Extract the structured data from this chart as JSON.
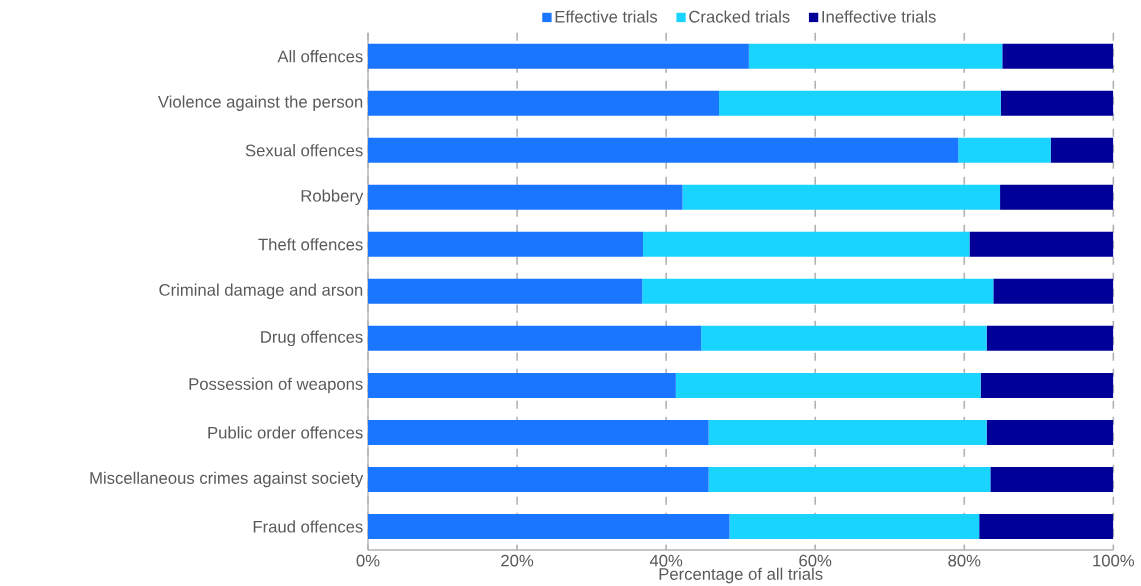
{
  "chart_data": {
    "type": "bar",
    "orientation": "horizontal",
    "stacked": true,
    "categories": [
      "All offences",
      "Violence against the person",
      "Sexual offences",
      "Robbery",
      "Theft offences",
      "Criminal damage and arson",
      "Drug offences",
      "Possession of weapons",
      "Public order offences",
      "Miscellaneous crimes against society",
      "Fraud offences"
    ],
    "series": [
      {
        "name": "Effective trials",
        "color": "#1a75ff",
        "values": [
          51.1,
          47.1,
          79.2,
          42.2,
          36.9,
          36.8,
          44.7,
          41.3,
          45.7,
          45.7,
          48.5
        ]
      },
      {
        "name": "Cracked trials",
        "color": "#19d4ff",
        "values": [
          34.0,
          37.8,
          12.4,
          42.6,
          43.8,
          47.1,
          38.3,
          40.9,
          37.3,
          37.8,
          33.5
        ]
      },
      {
        "name": "Ineffective trials",
        "color": "#000099",
        "values": [
          14.9,
          15.1,
          8.4,
          15.2,
          19.3,
          16.1,
          17.0,
          17.8,
          17.0,
          16.5,
          18.0
        ]
      }
    ],
    "xlabel": "Percentage of all trials",
    "xlim": [
      0,
      100
    ],
    "xticks": [
      {
        "value": 0,
        "label": "0%"
      },
      {
        "value": 20,
        "label": "20%"
      },
      {
        "value": 40,
        "label": "40%"
      },
      {
        "value": 60,
        "label": "60%"
      },
      {
        "value": 80,
        "label": "80%"
      },
      {
        "value": 100,
        "label": "100%"
      }
    ],
    "grid": "x",
    "legend": "top"
  }
}
